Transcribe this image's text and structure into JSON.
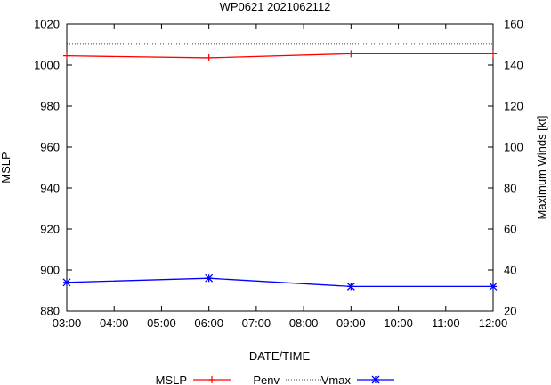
{
  "chart_data": {
    "type": "line",
    "title": "WP0621 2021062112",
    "xlabel": "DATE/TIME",
    "ylabel": "MSLP",
    "y2label": "Maximum Winds [kt]",
    "x_ticks": [
      "03:00",
      "04:00",
      "05:00",
      "06:00",
      "07:00",
      "08:00",
      "09:00",
      "10:00",
      "11:00",
      "12:00"
    ],
    "ylim": [
      880,
      1020
    ],
    "y_ticks": [
      880,
      900,
      920,
      940,
      960,
      980,
      1000,
      1020
    ],
    "y2lim": [
      20,
      160
    ],
    "y2_ticks": [
      20,
      40,
      60,
      80,
      100,
      120,
      140,
      160
    ],
    "grid": false,
    "legend_position": "bottom",
    "series": [
      {
        "name": "MSLP",
        "axis": "left",
        "color": "#ff0000",
        "marker": "plus",
        "x": [
          3,
          6,
          9,
          12
        ],
        "values": [
          1004.5,
          1003.5,
          1005.5,
          1005.5
        ]
      },
      {
        "name": "Penv",
        "axis": "left",
        "color": "#000000",
        "style": "dotted",
        "x": [
          3,
          12
        ],
        "values": [
          1010.5,
          1010.5
        ]
      },
      {
        "name": "Vmax",
        "axis": "right",
        "color": "#0000ff",
        "marker": "star",
        "x": [
          3,
          6,
          9,
          12
        ],
        "values": [
          34,
          36,
          32,
          32
        ]
      }
    ]
  }
}
